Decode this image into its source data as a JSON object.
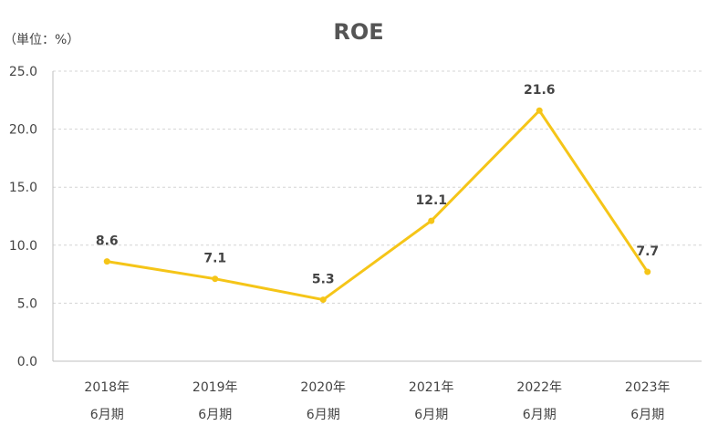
{
  "unit_label": "（単位：%）",
  "chart_data": {
    "type": "line",
    "title": "ROE",
    "xlabel": "",
    "ylabel": "",
    "categories": [
      [
        "2018年",
        "6月期"
      ],
      [
        "2019年",
        "6月期"
      ],
      [
        "2020年",
        "6月期"
      ],
      [
        "2021年",
        "6月期"
      ],
      [
        "2022年",
        "6月期"
      ],
      [
        "2023年",
        "6月期"
      ]
    ],
    "series": [
      {
        "values": [
          8.6,
          7.1,
          5.3,
          12.1,
          21.6,
          7.7
        ],
        "color": "#F5C518"
      }
    ],
    "data_labels": [
      "8.6",
      "7.1",
      "5.3",
      "12.1",
      "21.6",
      "7.7"
    ],
    "ylim": [
      0,
      25
    ],
    "yticks": [
      "0.0",
      "5.0",
      "10.0",
      "15.0",
      "20.0",
      "25.0"
    ],
    "grid": true,
    "legend": "none"
  }
}
